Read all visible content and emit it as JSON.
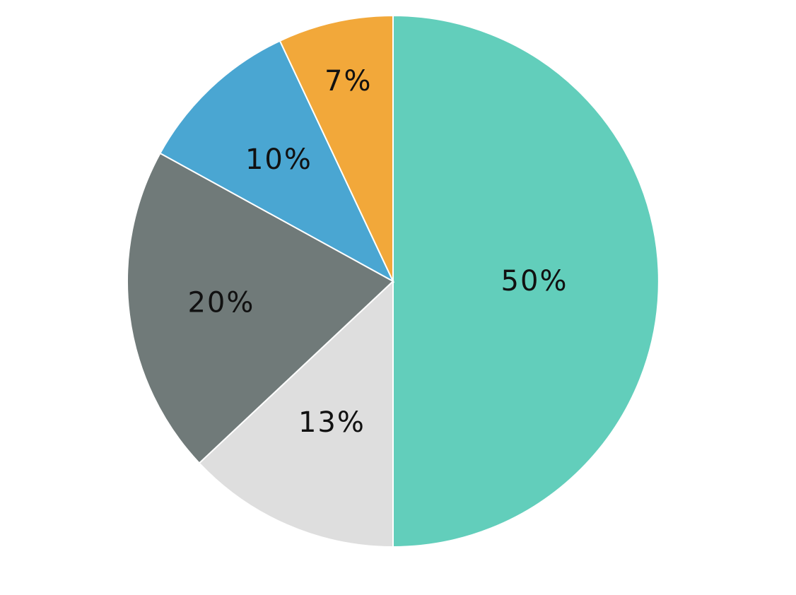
{
  "chart_data": {
    "type": "pie",
    "start_angle_deg": 90,
    "direction": "clockwise",
    "slices": [
      {
        "label": "50%",
        "value": 50,
        "color": "#62cebb"
      },
      {
        "label": "13%",
        "value": 13,
        "color": "#dedede"
      },
      {
        "label": "20%",
        "value": 20,
        "color": "#707a79"
      },
      {
        "label": "10%",
        "value": 10,
        "color": "#4aa6d2"
      },
      {
        "label": "7%",
        "value": 7,
        "color": "#f2a83a"
      }
    ]
  }
}
